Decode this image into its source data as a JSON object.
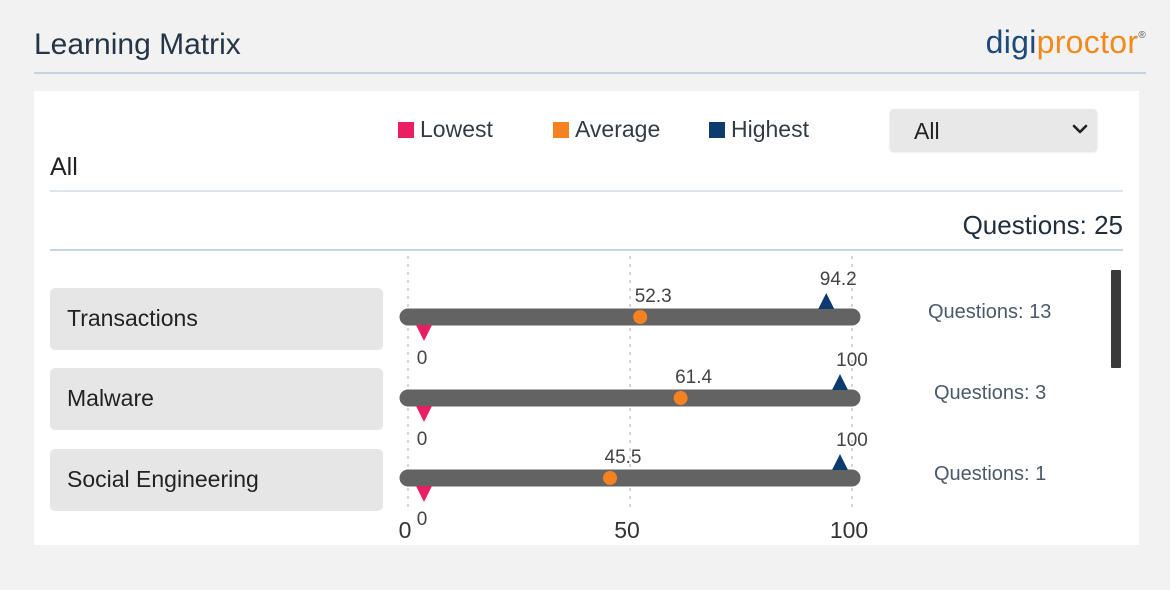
{
  "header": {
    "title": "Learning Matrix",
    "logo_part1": "digi",
    "logo_part2": "proctor",
    "logo_mark": "®"
  },
  "legend": [
    {
      "label": "Lowest",
      "color": "#e91e63"
    },
    {
      "label": "Average",
      "color": "#f58220"
    },
    {
      "label": "Highest",
      "color": "#0d3b6e"
    }
  ],
  "filter": {
    "selected": "All",
    "label": "All"
  },
  "summary": {
    "questions": "Questions: 25"
  },
  "rows": [
    {
      "topic": "Transactions",
      "questions": "Questions: 13"
    },
    {
      "topic": "Malware",
      "questions": "Questions: 3"
    },
    {
      "topic": "Social Engineering",
      "questions": "Questions: 1"
    }
  ],
  "chart_data": {
    "type": "range-dot",
    "axis": {
      "ticks": [
        0,
        50,
        100
      ],
      "xlim": [
        0,
        100
      ]
    },
    "series": [
      {
        "category": "Transactions",
        "lowest": 0,
        "average": 52.3,
        "highest": 94.2
      },
      {
        "category": "Malware",
        "lowest": 0,
        "average": 61.4,
        "highest": 100
      },
      {
        "category": "Social Engineering",
        "lowest": 0,
        "average": 45.5,
        "highest": 100
      }
    ],
    "grid": true
  }
}
